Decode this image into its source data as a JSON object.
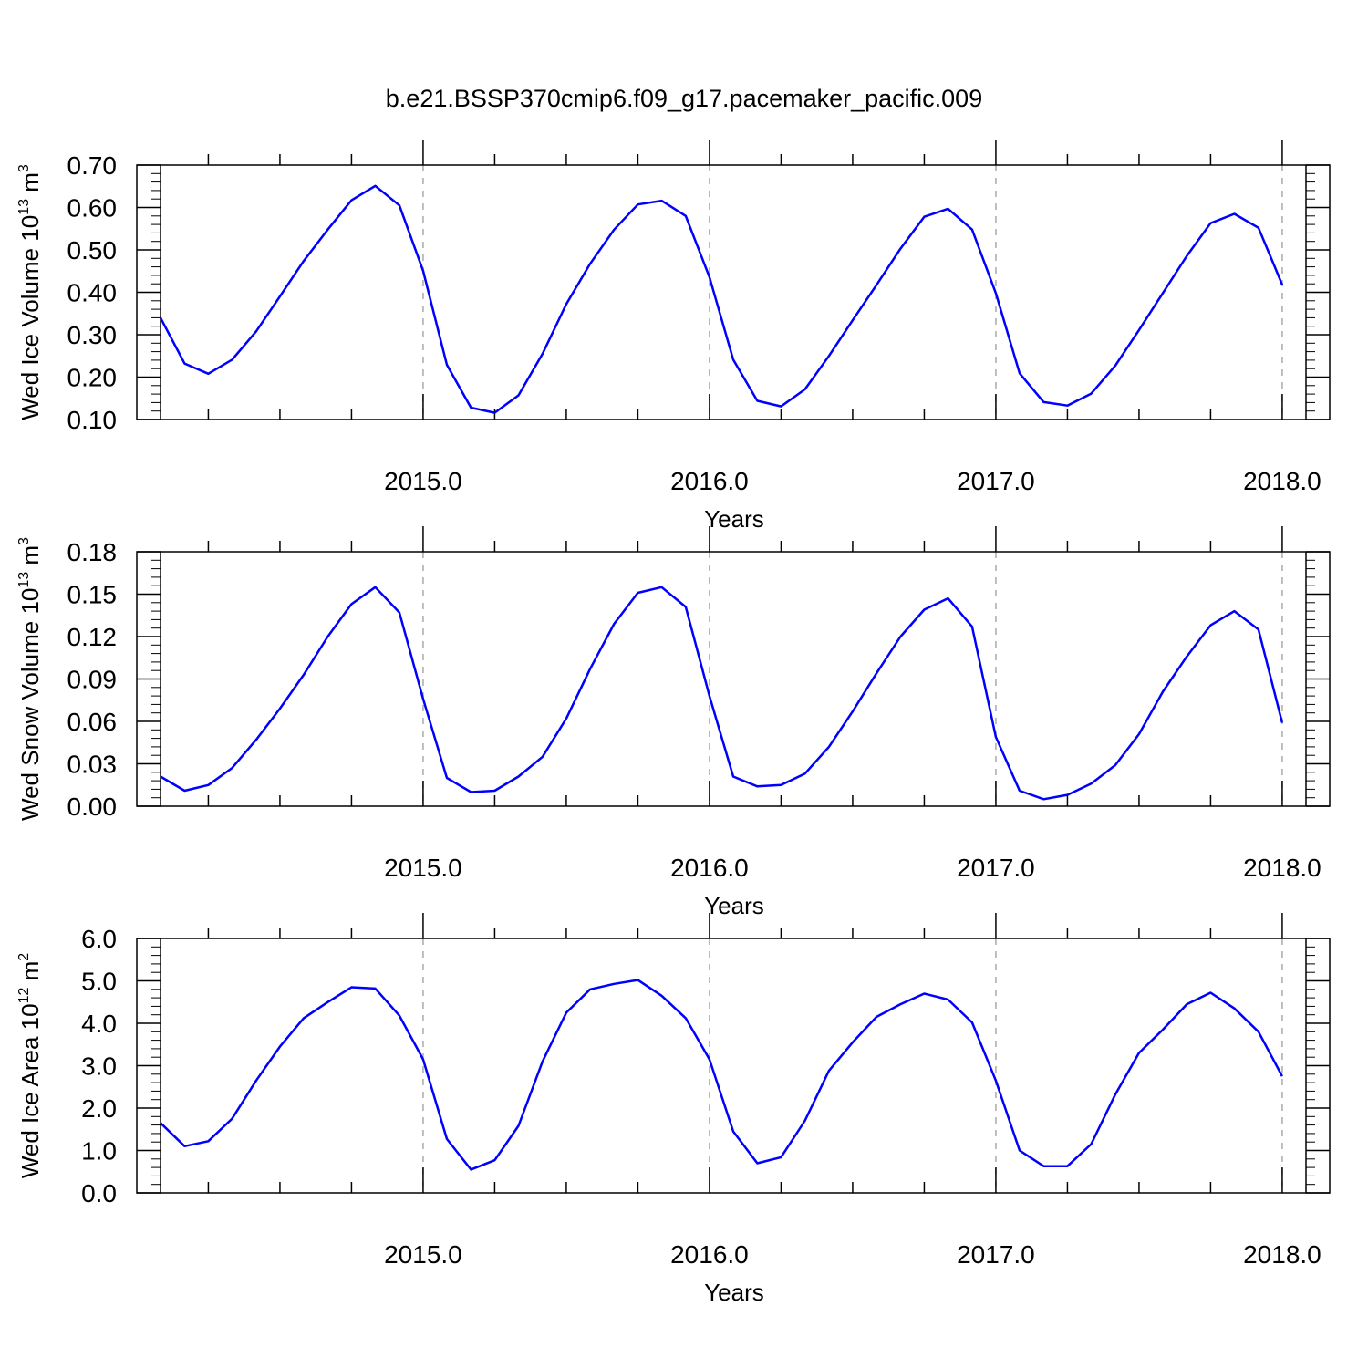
{
  "chart_data": {
    "title": "b.e21.BSSP370cmip6.f09_g17.pacemaker_pacific.009",
    "x_tick_labels": [
      "2015.0",
      "2016.0",
      "2017.0",
      "2018.0"
    ],
    "x_ticks": [
      2015,
      2016,
      2017,
      2018
    ],
    "colors": {
      "line": "#0000ff",
      "axis": "#000000",
      "grid": "#aaaaaa"
    },
    "panels": [
      {
        "type": "line",
        "ylabel": "Wed Ice Volume 10",
        "ylabel_exp": "13",
        "ylabel_unit": " m",
        "ylabel_unit_exp": "3",
        "xlabel": "Years",
        "ylim": [
          0.1,
          0.7
        ],
        "xlim": [
          2014.083,
          2018.083
        ],
        "y_ticks": [
          0.1,
          0.2,
          0.3,
          0.4,
          0.5,
          0.6,
          0.7
        ],
        "y_tick_labels": [
          "0.10",
          "0.20",
          "0.30",
          "0.40",
          "0.50",
          "0.60",
          "0.70"
        ],
        "grid": "vertical dashed at x ticks",
        "x": [
          2014.083,
          2014.167,
          2014.25,
          2014.333,
          2014.417,
          2014.5,
          2014.583,
          2014.667,
          2014.75,
          2014.833,
          2014.917,
          2015.0,
          2015.083,
          2015.167,
          2015.25,
          2015.333,
          2015.417,
          2015.5,
          2015.583,
          2015.667,
          2015.75,
          2015.833,
          2015.917,
          2016.0,
          2016.083,
          2016.167,
          2016.25,
          2016.333,
          2016.417,
          2016.5,
          2016.583,
          2016.667,
          2016.75,
          2016.833,
          2016.917,
          2017.0,
          2017.083,
          2017.167,
          2017.25,
          2017.333,
          2017.417,
          2017.5,
          2017.583,
          2017.667,
          2017.75,
          2017.833,
          2017.917,
          2018.0
        ],
        "values": [
          0.34,
          0.232,
          0.208,
          0.241,
          0.308,
          0.39,
          0.474,
          0.548,
          0.617,
          0.651,
          0.605,
          0.451,
          0.229,
          0.128,
          0.116,
          0.157,
          0.255,
          0.372,
          0.467,
          0.548,
          0.607,
          0.616,
          0.58,
          0.436,
          0.241,
          0.144,
          0.131,
          0.171,
          0.25,
          0.334,
          0.417,
          0.503,
          0.578,
          0.597,
          0.548,
          0.398,
          0.209,
          0.141,
          0.133,
          0.161,
          0.227,
          0.311,
          0.398,
          0.486,
          0.563,
          0.585,
          0.552,
          0.418
        ]
      },
      {
        "type": "line",
        "ylabel": "Wed Snow Volume 10",
        "ylabel_exp": "13",
        "ylabel_unit": " m",
        "ylabel_unit_exp": "3",
        "xlabel": "Years",
        "ylim": [
          0.0,
          0.18
        ],
        "xlim": [
          2014.083,
          2018.083
        ],
        "y_ticks": [
          0.0,
          0.03,
          0.06,
          0.09,
          0.12,
          0.15,
          0.18
        ],
        "y_tick_labels": [
          "0.00",
          "0.03",
          "0.06",
          "0.09",
          "0.12",
          "0.15",
          "0.18"
        ],
        "grid": "vertical dashed at x ticks",
        "x": [
          2014.083,
          2014.167,
          2014.25,
          2014.333,
          2014.417,
          2014.5,
          2014.583,
          2014.667,
          2014.75,
          2014.833,
          2014.917,
          2015.0,
          2015.083,
          2015.167,
          2015.25,
          2015.333,
          2015.417,
          2015.5,
          2015.583,
          2015.667,
          2015.75,
          2015.833,
          2015.917,
          2016.0,
          2016.083,
          2016.167,
          2016.25,
          2016.333,
          2016.417,
          2016.5,
          2016.583,
          2016.667,
          2016.75,
          2016.833,
          2016.917,
          2017.0,
          2017.083,
          2017.167,
          2017.25,
          2017.333,
          2017.417,
          2017.5,
          2017.583,
          2017.667,
          2017.75,
          2017.833,
          2017.917,
          2018.0
        ],
        "values": [
          0.021,
          0.011,
          0.015,
          0.027,
          0.047,
          0.069,
          0.093,
          0.12,
          0.143,
          0.155,
          0.137,
          0.076,
          0.02,
          0.01,
          0.011,
          0.021,
          0.035,
          0.062,
          0.097,
          0.129,
          0.151,
          0.155,
          0.141,
          0.078,
          0.021,
          0.014,
          0.015,
          0.023,
          0.042,
          0.067,
          0.094,
          0.12,
          0.139,
          0.147,
          0.127,
          0.049,
          0.011,
          0.005,
          0.008,
          0.016,
          0.029,
          0.051,
          0.081,
          0.106,
          0.128,
          0.138,
          0.125,
          0.059
        ]
      },
      {
        "type": "line",
        "ylabel": "Wed Ice Area 10",
        "ylabel_exp": "12",
        "ylabel_unit": " m",
        "ylabel_unit_exp": "2",
        "xlabel": "Years",
        "ylim": [
          0.0,
          6.0
        ],
        "xlim": [
          2014.083,
          2018.083
        ],
        "y_ticks": [
          0.0,
          1.0,
          2.0,
          3.0,
          4.0,
          5.0,
          6.0
        ],
        "y_tick_labels": [
          "0.0",
          "1.0",
          "2.0",
          "3.0",
          "4.0",
          "5.0",
          "6.0"
        ],
        "grid": "vertical dashed at x ticks",
        "x": [
          2014.083,
          2014.167,
          2014.25,
          2014.333,
          2014.417,
          2014.5,
          2014.583,
          2014.667,
          2014.75,
          2014.833,
          2014.917,
          2015.0,
          2015.083,
          2015.167,
          2015.25,
          2015.333,
          2015.417,
          2015.5,
          2015.583,
          2015.667,
          2015.75,
          2015.833,
          2015.917,
          2016.0,
          2016.083,
          2016.167,
          2016.25,
          2016.333,
          2016.417,
          2016.5,
          2016.583,
          2016.667,
          2016.75,
          2016.833,
          2016.917,
          2017.0,
          2017.083,
          2017.167,
          2017.25,
          2017.333,
          2017.417,
          2017.5,
          2017.583,
          2017.667,
          2017.75,
          2017.833,
          2017.917,
          2018.0
        ],
        "values": [
          1.65,
          1.1,
          1.22,
          1.75,
          2.65,
          3.45,
          4.12,
          4.5,
          4.85,
          4.82,
          4.18,
          3.15,
          1.27,
          0.55,
          0.77,
          1.58,
          3.1,
          4.25,
          4.8,
          4.93,
          5.02,
          4.65,
          4.12,
          3.15,
          1.45,
          0.7,
          0.84,
          1.7,
          2.88,
          3.55,
          4.15,
          4.45,
          4.7,
          4.56,
          4.02,
          2.65,
          1.0,
          0.63,
          0.63,
          1.15,
          2.32,
          3.3,
          3.85,
          4.45,
          4.72,
          4.35,
          3.8,
          2.75
        ]
      }
    ]
  }
}
